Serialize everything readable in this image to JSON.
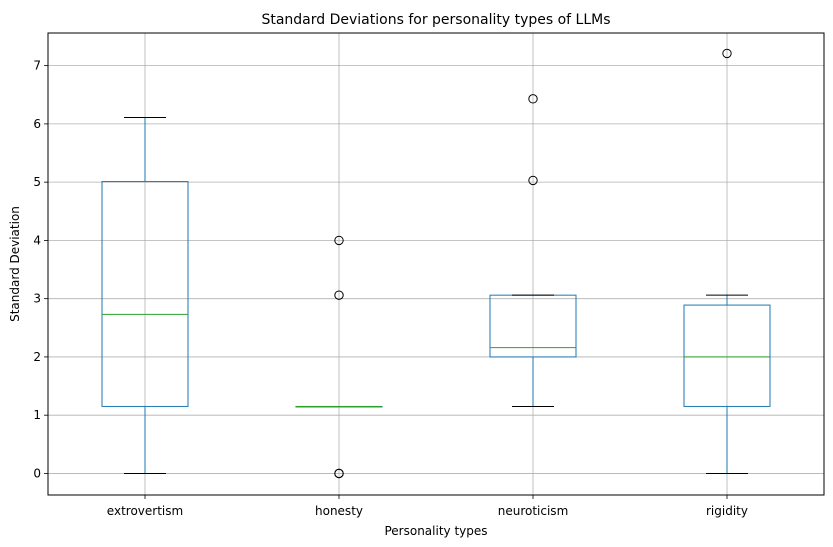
{
  "chart_data": {
    "type": "box",
    "title": "Standard Deviations for personality types of LLMs",
    "xlabel": "Personality types",
    "ylabel": "Standard Deviation",
    "ylim": [
      -0.37,
      7.56
    ],
    "yticks": [
      0,
      1,
      2,
      3,
      4,
      5,
      6,
      7
    ],
    "grid": true,
    "colors": {
      "box": "#1f77b4",
      "median": "#2ca02c",
      "caps": "#000000",
      "grid": "#b0b0b0",
      "outlier": "#000000"
    },
    "categories": [
      "extrovertism",
      "honesty",
      "neuroticism",
      "rigidity"
    ],
    "boxes": [
      {
        "name": "extrovertism",
        "whisker_low": 0.0,
        "q1": 1.15,
        "median": 2.73,
        "q3": 5.01,
        "whisker_high": 6.11,
        "outliers": []
      },
      {
        "name": "honesty",
        "whisker_low": 1.15,
        "q1": 1.15,
        "median": 1.15,
        "q3": 1.15,
        "whisker_high": 1.15,
        "outliers": [
          4.0,
          3.06,
          0.0,
          0.0
        ]
      },
      {
        "name": "neuroticism",
        "whisker_low": 1.15,
        "q1": 2.0,
        "median": 2.16,
        "q3": 3.06,
        "whisker_high": 3.06,
        "outliers": [
          6.43,
          5.03
        ]
      },
      {
        "name": "rigidity",
        "whisker_low": 0.0,
        "q1": 1.15,
        "median": 2.0,
        "q3": 2.89,
        "whisker_high": 3.06,
        "outliers": [
          7.21
        ]
      }
    ]
  }
}
